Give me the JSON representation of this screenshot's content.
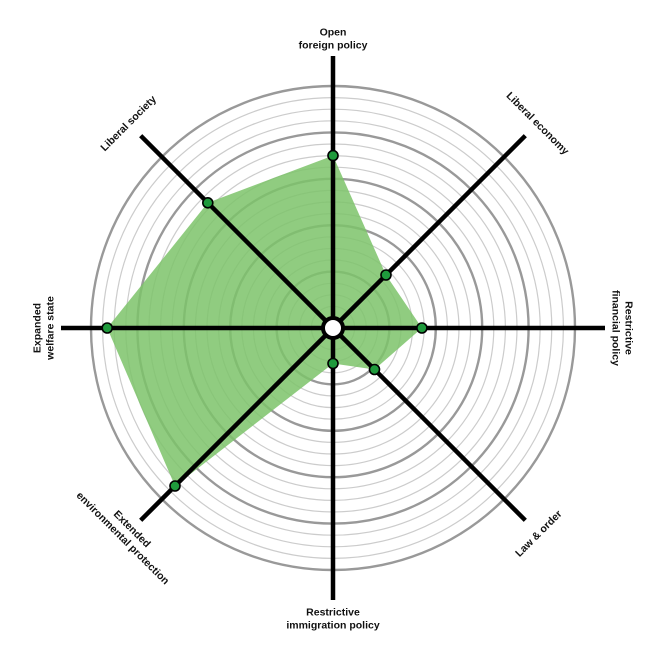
{
  "chart_data": {
    "type": "radar",
    "axes": [
      {
        "label_lines": [
          "Open",
          "foreign policy"
        ]
      },
      {
        "label_lines": [
          "Liberal economy"
        ]
      },
      {
        "label_lines": [
          "Restrictive",
          "financial policy"
        ]
      },
      {
        "label_lines": [
          "Law & order"
        ]
      },
      {
        "label_lines": [
          "Restrictive",
          "immigration policy"
        ]
      },
      {
        "label_lines": [
          "Extended",
          "environmental protection"
        ]
      },
      {
        "label_lines": [
          "Expanded",
          "welfare state"
        ]
      },
      {
        "label_lines": [
          "Liberal society"
        ]
      }
    ],
    "values": [
      0.7,
      0.28,
      0.34,
      0.21,
      0.11,
      0.92,
      0.93,
      0.72
    ],
    "range": [
      0,
      1
    ],
    "rings": 20,
    "major_ring_every": 4,
    "colors": {
      "area": "#7cc36a",
      "point": "#1f9a3c",
      "axis": "#000000",
      "ring": "#cccccc",
      "major_ring": "#999999"
    }
  }
}
